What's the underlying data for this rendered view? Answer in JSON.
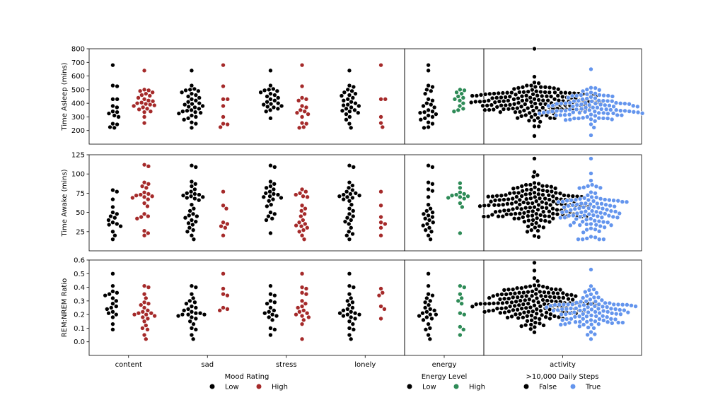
{
  "chart_data": {
    "type": "scatter",
    "subtype": "swarm",
    "rows": [
      {
        "metric": "Time Asleep (mins)",
        "ylim": [
          100,
          800
        ],
        "ticks": [
          200,
          300,
          400,
          500,
          600,
          700,
          800
        ]
      },
      {
        "metric": "Time Awake (mins)",
        "ylim": [
          0,
          125
        ],
        "ticks": [
          25,
          50,
          75,
          100,
          125
        ]
      },
      {
        "metric": "REM:NREM Ratio",
        "ylim": [
          -0.1,
          0.6
        ],
        "ticks": [
          0.0,
          0.1,
          0.2,
          0.3,
          0.4,
          0.5,
          0.6
        ]
      }
    ],
    "tick_labels": {
      "time_asleep": [
        "200",
        "300",
        "400",
        "500",
        "600",
        "700",
        "800"
      ],
      "time_awake": [
        "25",
        "50",
        "75",
        "100",
        "125"
      ],
      "rem_ratio": [
        "0.0",
        "0.1",
        "0.2",
        "0.3",
        "0.4",
        "0.5",
        "0.6"
      ]
    },
    "columns": [
      {
        "key": "mood",
        "categories": [
          "content",
          "sad",
          "stress",
          "lonely"
        ],
        "hue_title": "Mood Rating",
        "hue_labels": [
          "Low",
          "High"
        ],
        "colors": [
          "#000000",
          "#a52a2a"
        ]
      },
      {
        "key": "energy",
        "categories": [
          "energy"
        ],
        "hue_title": "Energy Level",
        "hue_labels": [
          "Low",
          "High"
        ],
        "colors": [
          "#000000",
          "#2e8b57"
        ]
      },
      {
        "key": "activity",
        "categories": [
          "activity"
        ],
        "hue_title": ">10,000 Daily Steps",
        "hue_labels": [
          "False",
          "True"
        ],
        "colors": [
          "#000000",
          "#6495ed"
        ]
      }
    ],
    "series": [
      {
        "row": 0,
        "col": 0,
        "cat": 0,
        "hue": 0,
        "values": [
          680,
          530,
          525,
          430,
          430,
          380,
          370,
          340,
          335,
          325,
          310,
          300,
          250,
          245,
          225,
          220
        ]
      },
      {
        "row": 0,
        "col": 0,
        "cat": 0,
        "hue": 1,
        "values": [
          640,
          500,
          495,
          490,
          480,
          470,
          460,
          455,
          440,
          430,
          420,
          415,
          405,
          400,
          395,
          390,
          385,
          380,
          370,
          360,
          355,
          340,
          335,
          300,
          255
        ]
      },
      {
        "row": 0,
        "col": 0,
        "cat": 1,
        "hue": 0,
        "values": [
          640,
          530,
          505,
          500,
          495,
          490,
          480,
          470,
          460,
          450,
          440,
          430,
          420,
          410,
          400,
          395,
          390,
          380,
          375,
          370,
          360,
          350,
          345,
          340,
          335,
          330,
          325,
          310,
          300,
          290,
          280,
          260,
          250,
          220
        ]
      },
      {
        "row": 0,
        "col": 0,
        "cat": 1,
        "hue": 1,
        "values": [
          680,
          525,
          430,
          430,
          380,
          300,
          250,
          245,
          225
        ]
      },
      {
        "row": 0,
        "col": 0,
        "cat": 2,
        "hue": 0,
        "values": [
          640,
          530,
          505,
          500,
          495,
          490,
          480,
          470,
          460,
          450,
          440,
          430,
          420,
          410,
          400,
          395,
          390,
          380,
          375,
          370,
          360,
          350,
          340,
          290
        ]
      },
      {
        "row": 0,
        "col": 0,
        "cat": 2,
        "hue": 1,
        "values": [
          680,
          525,
          440,
          430,
          420,
          380,
          370,
          350,
          340,
          330,
          320,
          300,
          255,
          250,
          225,
          220
        ]
      },
      {
        "row": 0,
        "col": 0,
        "cat": 3,
        "hue": 0,
        "values": [
          640,
          530,
          520,
          500,
          490,
          480,
          470,
          460,
          455,
          440,
          430,
          420,
          410,
          400,
          390,
          385,
          380,
          370,
          360,
          350,
          345,
          340,
          330,
          320,
          300,
          280,
          250,
          220
        ]
      },
      {
        "row": 0,
        "col": 0,
        "cat": 3,
        "hue": 1,
        "values": [
          680,
          430,
          430,
          300,
          255,
          225
        ]
      },
      {
        "row": 0,
        "col": 1,
        "cat": 0,
        "hue": 0,
        "values": [
          680,
          640,
          530,
          520,
          500,
          490,
          470,
          430,
          420,
          400,
          390,
          380,
          370,
          350,
          340,
          335,
          330,
          320,
          310,
          300,
          290,
          280,
          260,
          250,
          225,
          220
        ]
      },
      {
        "row": 0,
        "col": 1,
        "cat": 0,
        "hue": 1,
        "values": [
          500,
          495,
          480,
          470,
          450,
          440,
          430,
          420,
          400,
          380,
          360,
          350,
          340
        ]
      },
      {
        "row": 1,
        "col": 0,
        "cat": 0,
        "hue": 0,
        "values": [
          79,
          77,
          67,
          57,
          50,
          48,
          45,
          43,
          40,
          37,
          35,
          34,
          32,
          25,
          20,
          15
        ]
      },
      {
        "row": 1,
        "col": 0,
        "cat": 0,
        "hue": 1,
        "values": [
          112,
          110,
          89,
          87,
          84,
          82,
          76,
          74,
          73,
          72,
          71,
          70,
          69,
          67,
          62,
          58,
          48,
          45,
          44,
          42,
          26,
          23,
          20
        ]
      },
      {
        "row": 1,
        "col": 0,
        "cat": 1,
        "hue": 0,
        "values": [
          111,
          109,
          90,
          87,
          84,
          80,
          77,
          75,
          74,
          73,
          72,
          71,
          70,
          69,
          68,
          66,
          60,
          55,
          52,
          48,
          46,
          45,
          43,
          40,
          38,
          36,
          34,
          30,
          27,
          25,
          20,
          15
        ]
      },
      {
        "row": 1,
        "col": 0,
        "cat": 1,
        "hue": 1,
        "values": [
          77,
          59,
          55,
          37,
          35,
          32,
          30,
          20
        ]
      },
      {
        "row": 1,
        "col": 0,
        "cat": 2,
        "hue": 0,
        "values": [
          111,
          109,
          90,
          87,
          84,
          82,
          80,
          77,
          75,
          74,
          73,
          71,
          70,
          69,
          67,
          65,
          60,
          58,
          50,
          48,
          45,
          42,
          40,
          23
        ]
      },
      {
        "row": 1,
        "col": 0,
        "cat": 2,
        "hue": 1,
        "values": [
          80,
          77,
          75,
          73,
          71,
          70,
          59,
          55,
          52,
          48,
          45,
          40,
          37,
          35,
          33,
          32,
          30,
          27,
          25,
          20,
          15
        ]
      },
      {
        "row": 1,
        "col": 0,
        "cat": 3,
        "hue": 0,
        "values": [
          111,
          109,
          89,
          85,
          82,
          79,
          77,
          75,
          74,
          73,
          72,
          71,
          70,
          69,
          67,
          65,
          60,
          55,
          52,
          48,
          45,
          43,
          40,
          38,
          35,
          30,
          25,
          22,
          20,
          15
        ]
      },
      {
        "row": 1,
        "col": 0,
        "cat": 3,
        "hue": 1,
        "values": [
          77,
          59,
          44,
          37,
          35,
          30,
          20
        ]
      },
      {
        "row": 1,
        "col": 1,
        "cat": 0,
        "hue": 0,
        "values": [
          111,
          109,
          89,
          87,
          80,
          78,
          70,
          60,
          55,
          52,
          50,
          48,
          46,
          44,
          42,
          40,
          37,
          35,
          33,
          30,
          27,
          25,
          20,
          15
        ]
      },
      {
        "row": 1,
        "col": 1,
        "cat": 0,
        "hue": 1,
        "values": [
          88,
          82,
          76,
          74,
          73,
          72,
          71,
          70,
          69,
          68,
          62,
          57,
          23
        ]
      },
      {
        "row": 2,
        "col": 0,
        "cat": 0,
        "hue": 0,
        "values": [
          0.5,
          0.41,
          0.37,
          0.36,
          0.35,
          0.34,
          0.32,
          0.3,
          0.28,
          0.26,
          0.25,
          0.24,
          0.22,
          0.21,
          0.2,
          0.18,
          0.13,
          0.09
        ]
      },
      {
        "row": 2,
        "col": 0,
        "cat": 0,
        "hue": 1,
        "values": [
          0.41,
          0.4,
          0.35,
          0.32,
          0.29,
          0.28,
          0.27,
          0.25,
          0.23,
          0.22,
          0.21,
          0.21,
          0.2,
          0.2,
          0.19,
          0.18,
          0.17,
          0.15,
          0.12,
          0.1,
          0.09,
          0.05,
          0.02
        ]
      },
      {
        "row": 2,
        "col": 0,
        "cat": 1,
        "hue": 0,
        "values": [
          0.41,
          0.4,
          0.35,
          0.32,
          0.3,
          0.29,
          0.28,
          0.26,
          0.25,
          0.24,
          0.23,
          0.22,
          0.21,
          0.21,
          0.2,
          0.2,
          0.2,
          0.19,
          0.18,
          0.17,
          0.15,
          0.13,
          0.1,
          0.09,
          0.05,
          0.02
        ]
      },
      {
        "row": 2,
        "col": 0,
        "cat": 1,
        "hue": 1,
        "values": [
          0.5,
          0.39,
          0.35,
          0.34,
          0.25,
          0.24,
          0.23
        ]
      },
      {
        "row": 2,
        "col": 0,
        "cat": 2,
        "hue": 0,
        "values": [
          0.41,
          0.35,
          0.34,
          0.3,
          0.29,
          0.28,
          0.25,
          0.23,
          0.22,
          0.21,
          0.2,
          0.19,
          0.18,
          0.16,
          0.1,
          0.09,
          0.05
        ]
      },
      {
        "row": 2,
        "col": 0,
        "cat": 2,
        "hue": 1,
        "values": [
          0.5,
          0.4,
          0.39,
          0.36,
          0.35,
          0.3,
          0.28,
          0.26,
          0.25,
          0.23,
          0.22,
          0.21,
          0.2,
          0.19,
          0.18,
          0.16,
          0.13,
          0.02
        ]
      },
      {
        "row": 2,
        "col": 0,
        "cat": 3,
        "hue": 0,
        "values": [
          0.5,
          0.41,
          0.4,
          0.35,
          0.32,
          0.3,
          0.29,
          0.27,
          0.25,
          0.24,
          0.23,
          0.22,
          0.21,
          0.21,
          0.2,
          0.2,
          0.19,
          0.18,
          0.17,
          0.15,
          0.13,
          0.1,
          0.09,
          0.05,
          0.02
        ]
      },
      {
        "row": 2,
        "col": 0,
        "cat": 3,
        "hue": 1,
        "values": [
          0.39,
          0.36,
          0.34,
          0.26,
          0.24,
          0.17
        ]
      },
      {
        "row": 2,
        "col": 1,
        "cat": 0,
        "hue": 0,
        "values": [
          0.5,
          0.41,
          0.35,
          0.34,
          0.32,
          0.3,
          0.29,
          0.27,
          0.25,
          0.24,
          0.23,
          0.22,
          0.21,
          0.2,
          0.2,
          0.19,
          0.18,
          0.17,
          0.16,
          0.13,
          0.1,
          0.09,
          0.05,
          0.02
        ]
      },
      {
        "row": 2,
        "col": 1,
        "cat": 0,
        "hue": 1,
        "values": [
          0.41,
          0.4,
          0.35,
          0.32,
          0.3,
          0.28,
          0.21,
          0.2,
          0.11,
          0.09,
          0.05
        ]
      }
    ],
    "activity_summary": [
      {
        "row": 0,
        "hue": 0,
        "center": 410,
        "spread": 70,
        "min": 160,
        "max": 800,
        "n": 160
      },
      {
        "row": 0,
        "hue": 1,
        "center": 360,
        "spread": 65,
        "min": 165,
        "max": 650,
        "n": 105
      },
      {
        "row": 1,
        "hue": 0,
        "center": 60,
        "spread": 16,
        "min": 18,
        "max": 120,
        "n": 160
      },
      {
        "row": 1,
        "hue": 1,
        "center": 50,
        "spread": 17,
        "min": 15,
        "max": 120,
        "n": 105
      },
      {
        "row": 2,
        "hue": 0,
        "center": 0.29,
        "spread": 0.08,
        "min": 0.07,
        "max": 0.58,
        "n": 160
      },
      {
        "row": 2,
        "hue": 1,
        "center": 0.24,
        "spread": 0.08,
        "min": 0.02,
        "max": 0.53,
        "n": 105
      }
    ],
    "legends": [
      {
        "title": "Mood Rating",
        "items": [
          {
            "label": "Low",
            "color": "#000000"
          },
          {
            "label": "High",
            "color": "#a52a2a"
          }
        ]
      },
      {
        "title": "Energy Level",
        "items": [
          {
            "label": "Low",
            "color": "#000000"
          },
          {
            "label": "High",
            "color": "#2e8b57"
          }
        ]
      },
      {
        "title": ">10,000 Daily Steps",
        "items": [
          {
            "label": "False",
            "color": "#000000"
          },
          {
            "label": "True",
            "color": "#6495ed"
          }
        ]
      }
    ],
    "grid": false
  }
}
